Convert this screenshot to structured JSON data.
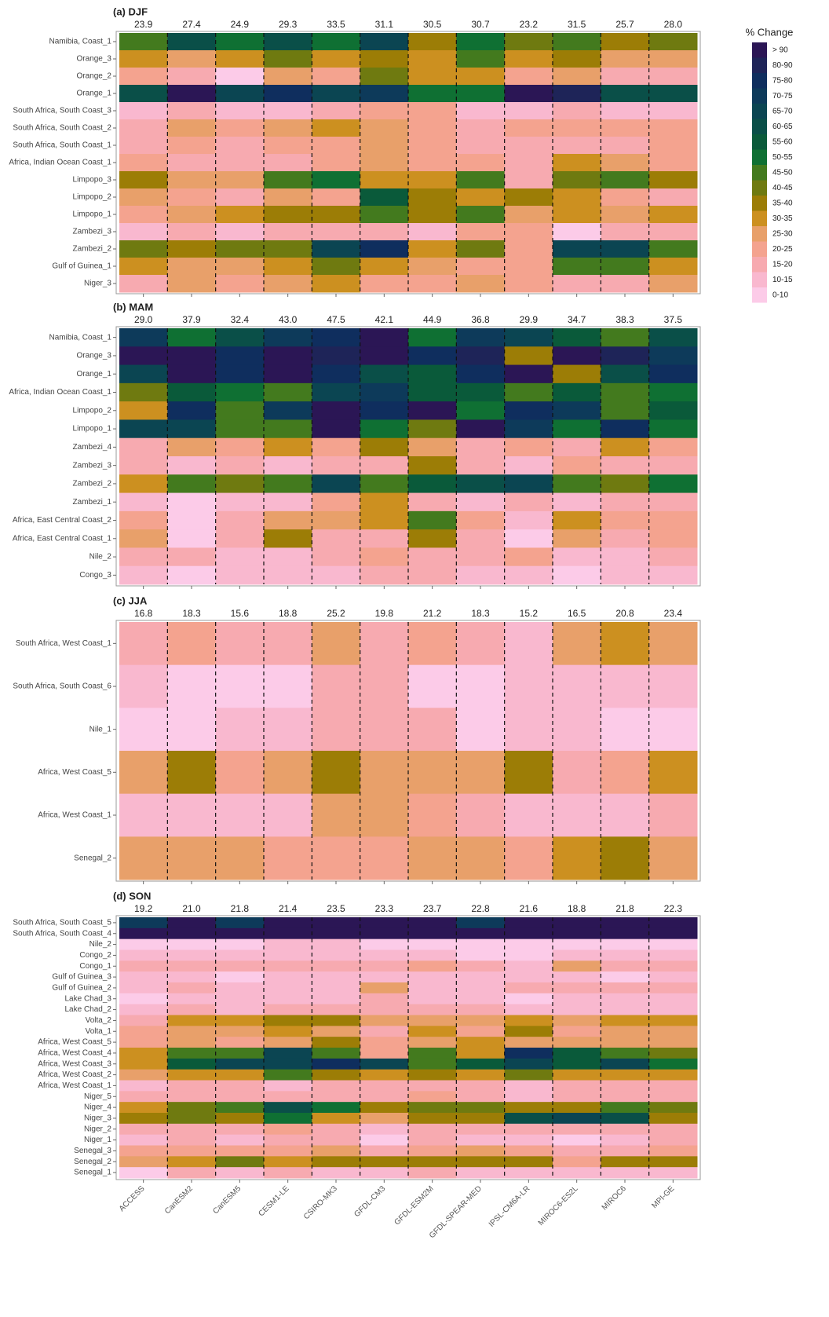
{
  "columns": [
    "ACCESS",
    "CanESM2",
    "CanESM5",
    "CESM1-LE",
    "CSIRO-MK3",
    "GFDL-CM3",
    "GFDL-ESM2M",
    "GFDL-SPEAR-MED",
    "IPSL-CM6A-LR",
    "MIROC6-ES2L",
    "MIROC6",
    "MPI-GE"
  ],
  "legend": {
    "title": "% Change",
    "classes": [
      {
        "label": "> 90",
        "color": "#2b1655"
      },
      {
        "label": "80-90",
        "color": "#1e2458"
      },
      {
        "label": "75-80",
        "color": "#0f2e5e"
      },
      {
        "label": "70-75",
        "color": "#0d3a5a"
      },
      {
        "label": "65-70",
        "color": "#0b4552"
      },
      {
        "label": "60-65",
        "color": "#0a4f48"
      },
      {
        "label": "55-60",
        "color": "#0a5a3a"
      },
      {
        "label": "50-55",
        "color": "#0f7033"
      },
      {
        "label": "45-50",
        "color": "#437a1e"
      },
      {
        "label": "40-45",
        "color": "#6f7a10"
      },
      {
        "label": "35-40",
        "color": "#9c7d06"
      },
      {
        "label": "30-35",
        "color": "#cc9020"
      },
      {
        "label": "25-30",
        "color": "#e8a06a"
      },
      {
        "label": "20-25",
        "color": "#f4a38f"
      },
      {
        "label": "15-20",
        "color": "#f7aab0"
      },
      {
        "label": "10-15",
        "color": "#f9b8cf"
      },
      {
        "label": "0-10",
        "color": "#fccbe8"
      }
    ]
  },
  "chart_data": [
    {
      "type": "heatmap",
      "title": "(a) DJF",
      "rows": [
        "Namibia, Coast_1",
        "Orange_3",
        "Orange_2",
        "Orange_1",
        "South Africa, South Coast_3",
        "South Africa, South Coast_2",
        "South Africa, South Coast_1",
        "Africa, Indian Ocean Coast_1",
        "Limpopo_3",
        "Limpopo_2",
        "Limpopo_1",
        "Zambezi_3",
        "Zambezi_2",
        "Gulf of Guinea_1",
        "Niger_3"
      ],
      "means": [
        23.9,
        27.4,
        24.9,
        29.3,
        33.5,
        31.1,
        30.5,
        30.7,
        23.2,
        31.5,
        25.7,
        28.0
      ],
      "mean_labels": [
        "23.9",
        "27.4",
        "24.9",
        "29.3",
        "33.5",
        "31.1",
        "30.5",
        "30.7",
        "23.2",
        "31.5",
        "25.7",
        "28.0"
      ],
      "cells": [
        [
          8,
          5,
          7,
          5,
          7,
          4,
          10,
          7,
          9,
          8,
          10,
          9
        ],
        [
          11,
          12,
          11,
          9,
          11,
          10,
          11,
          8,
          11,
          10,
          12,
          12
        ],
        [
          13,
          14,
          16,
          12,
          13,
          9,
          11,
          11,
          13,
          12,
          14,
          14
        ],
        [
          5,
          0,
          4,
          2,
          4,
          3,
          7,
          7,
          0,
          1,
          5,
          5
        ],
        [
          15,
          14,
          15,
          15,
          14,
          13,
          13,
          15,
          15,
          14,
          15,
          15
        ],
        [
          14,
          12,
          13,
          12,
          11,
          12,
          13,
          14,
          13,
          13,
          13,
          13
        ],
        [
          14,
          13,
          14,
          13,
          13,
          12,
          13,
          14,
          14,
          14,
          14,
          13
        ],
        [
          13,
          14,
          14,
          14,
          13,
          12,
          13,
          13,
          14,
          11,
          12,
          13
        ],
        [
          10,
          12,
          12,
          8,
          7,
          11,
          11,
          8,
          14,
          9,
          8,
          10
        ],
        [
          12,
          13,
          14,
          12,
          13,
          6,
          10,
          11,
          10,
          11,
          13,
          14
        ],
        [
          13,
          12,
          11,
          10,
          10,
          8,
          10,
          8,
          12,
          11,
          12,
          11
        ],
        [
          15,
          14,
          15,
          14,
          14,
          14,
          15,
          13,
          13,
          16,
          14,
          14
        ],
        [
          9,
          10,
          9,
          9,
          4,
          2,
          11,
          9,
          13,
          4,
          4,
          8
        ],
        [
          11,
          12,
          12,
          11,
          9,
          11,
          12,
          13,
          13,
          8,
          8,
          11
        ],
        [
          14,
          12,
          13,
          12,
          11,
          13,
          13,
          12,
          13,
          14,
          14,
          12
        ]
      ]
    },
    {
      "type": "heatmap",
      "title": "(b) MAM",
      "rows": [
        "Namibia, Coast_1",
        "Orange_3",
        "Orange_1",
        "Africa, Indian Ocean Coast_1",
        "Limpopo_2",
        "Limpopo_1",
        "Zambezi_4",
        "Zambezi_3",
        "Zambezi_2",
        "Zambezi_1",
        "Africa, East Central Coast_2",
        "Africa, East Central Coast_1",
        "Nile_2",
        "Congo_3"
      ],
      "means": [
        29.0,
        37.9,
        32.4,
        43.0,
        47.5,
        42.1,
        44.9,
        36.8,
        29.9,
        34.7,
        38.3,
        37.5
      ],
      "mean_labels": [
        "29.0",
        "37.9",
        "32.4",
        "43.0",
        "47.5",
        "42.1",
        "44.9",
        "36.8",
        "29.9",
        "34.7",
        "38.3",
        "37.5"
      ],
      "cells": [
        [
          3,
          7,
          5,
          3,
          2,
          0,
          7,
          3,
          4,
          6,
          8,
          5
        ],
        [
          0,
          0,
          2,
          0,
          1,
          0,
          2,
          1,
          10,
          0,
          1,
          3
        ],
        [
          4,
          0,
          2,
          0,
          2,
          5,
          6,
          2,
          0,
          10,
          5,
          2
        ],
        [
          9,
          6,
          7,
          8,
          4,
          3,
          6,
          6,
          8,
          6,
          8,
          7
        ],
        [
          11,
          2,
          8,
          3,
          0,
          2,
          0,
          7,
          2,
          3,
          8,
          6
        ],
        [
          4,
          4,
          8,
          8,
          0,
          7,
          9,
          0,
          3,
          7,
          2,
          7
        ],
        [
          14,
          12,
          13,
          11,
          13,
          10,
          12,
          14,
          13,
          14,
          11,
          13
        ],
        [
          14,
          15,
          14,
          15,
          14,
          14,
          10,
          14,
          15,
          13,
          14,
          14
        ],
        [
          11,
          8,
          9,
          8,
          4,
          8,
          6,
          5,
          4,
          8,
          9,
          7
        ],
        [
          15,
          16,
          15,
          15,
          13,
          11,
          14,
          15,
          14,
          15,
          14,
          14
        ],
        [
          13,
          16,
          14,
          12,
          12,
          11,
          8,
          13,
          15,
          11,
          13,
          13
        ],
        [
          12,
          16,
          14,
          10,
          14,
          14,
          10,
          14,
          16,
          12,
          14,
          13
        ],
        [
          14,
          14,
          15,
          15,
          14,
          13,
          14,
          14,
          13,
          15,
          15,
          14
        ],
        [
          15,
          16,
          15,
          15,
          15,
          14,
          14,
          15,
          15,
          16,
          15,
          15
        ]
      ]
    },
    {
      "type": "heatmap",
      "title": "(c) JJA",
      "rows": [
        "South Africa, West Coast_1",
        "South Africa, South Coast_6",
        "Nile_1",
        "Africa, West Coast_5",
        "Africa, West Coast_1",
        "Senegal_2"
      ],
      "means": [
        16.8,
        18.3,
        15.6,
        18.8,
        25.2,
        19.8,
        21.2,
        18.3,
        15.2,
        16.5,
        20.8,
        23.4
      ],
      "mean_labels": [
        "16.8",
        "18.3",
        "15.6",
        "18.8",
        "25.2",
        "19.8",
        "21.2",
        "18.3",
        "15.2",
        "16.5",
        "20.8",
        "23.4"
      ],
      "cells": [
        [
          14,
          13,
          14,
          14,
          12,
          14,
          13,
          14,
          15,
          12,
          11,
          12
        ],
        [
          15,
          16,
          16,
          16,
          14,
          14,
          16,
          16,
          15,
          15,
          15,
          15
        ],
        [
          16,
          16,
          15,
          15,
          14,
          14,
          14,
          16,
          15,
          15,
          16,
          16
        ],
        [
          12,
          10,
          13,
          12,
          10,
          12,
          12,
          12,
          10,
          14,
          13,
          11
        ],
        [
          15,
          15,
          15,
          15,
          12,
          12,
          13,
          14,
          15,
          15,
          15,
          14
        ],
        [
          12,
          12,
          12,
          13,
          13,
          13,
          12,
          12,
          13,
          11,
          10,
          12
        ]
      ]
    },
    {
      "type": "heatmap",
      "title": "(d) SON",
      "rows": [
        "South Africa, South Coast_5",
        "South Africa, South Coast_4",
        "Nile_2",
        "Congo_2",
        "Congo_1",
        "Gulf of Guinea_3",
        "Gulf of Guinea_2",
        "Lake Chad_3",
        "Lake Chad_2",
        "Volta_2",
        "Volta_1",
        "Africa, West Coast_5",
        "Africa, West Coast_4",
        "Africa, West Coast_3",
        "Africa, West Coast_2",
        "Africa, West Coast_1",
        "Niger_5",
        "Niger_4",
        "Niger_3",
        "Niger_2",
        "Niger_1",
        "Senegal_3",
        "Senegal_2",
        "Senegal_1"
      ],
      "means": [
        19.2,
        21.0,
        21.8,
        21.4,
        23.5,
        23.3,
        23.7,
        22.8,
        21.6,
        18.8,
        21.8,
        22.3
      ],
      "mean_labels": [
        "19.2",
        "21.0",
        "21.8",
        "21.4",
        "23.5",
        "23.3",
        "23.7",
        "22.8",
        "21.6",
        "18.8",
        "21.8",
        "22.3"
      ],
      "cells": [
        [
          3,
          0,
          3,
          0,
          0,
          0,
          0,
          3,
          0,
          0,
          0,
          0
        ],
        [
          0,
          0,
          0,
          0,
          0,
          0,
          0,
          0,
          0,
          0,
          0,
          0
        ],
        [
          16,
          16,
          16,
          15,
          15,
          16,
          16,
          16,
          16,
          16,
          16,
          16
        ],
        [
          15,
          15,
          15,
          15,
          15,
          15,
          15,
          16,
          16,
          15,
          15,
          15
        ],
        [
          14,
          14,
          14,
          14,
          14,
          14,
          13,
          14,
          15,
          12,
          14,
          14
        ],
        [
          15,
          15,
          16,
          15,
          15,
          15,
          15,
          15,
          15,
          15,
          16,
          15
        ],
        [
          15,
          14,
          15,
          15,
          15,
          12,
          15,
          15,
          14,
          14,
          14,
          14
        ],
        [
          16,
          15,
          15,
          15,
          15,
          14,
          15,
          15,
          16,
          15,
          15,
          15
        ],
        [
          15,
          14,
          15,
          14,
          14,
          14,
          14,
          14,
          15,
          15,
          15,
          15
        ],
        [
          14,
          11,
          11,
          10,
          10,
          12,
          12,
          12,
          11,
          12,
          11,
          11
        ],
        [
          13,
          12,
          12,
          11,
          12,
          14,
          11,
          13,
          10,
          13,
          12,
          12
        ],
        [
          13,
          12,
          13,
          12,
          10,
          13,
          12,
          11,
          12,
          12,
          12,
          12
        ],
        [
          11,
          8,
          8,
          4,
          8,
          13,
          8,
          11,
          2,
          6,
          8,
          9
        ],
        [
          11,
          6,
          4,
          4,
          2,
          4,
          8,
          6,
          4,
          6,
          4,
          7
        ],
        [
          12,
          11,
          11,
          8,
          10,
          11,
          10,
          11,
          9,
          11,
          11,
          11
        ],
        [
          15,
          14,
          14,
          15,
          14,
          14,
          14,
          14,
          15,
          14,
          14,
          14
        ],
        [
          14,
          14,
          14,
          14,
          14,
          14,
          13,
          14,
          15,
          14,
          14,
          14
        ],
        [
          11,
          9,
          8,
          5,
          7,
          10,
          9,
          9,
          10,
          10,
          8,
          9
        ],
        [
          10,
          9,
          10,
          7,
          11,
          12,
          10,
          10,
          5,
          4,
          5,
          10
        ],
        [
          14,
          14,
          14,
          13,
          14,
          15,
          14,
          14,
          14,
          14,
          14,
          14
        ],
        [
          15,
          14,
          15,
          14,
          14,
          16,
          14,
          15,
          15,
          16,
          15,
          14
        ],
        [
          13,
          13,
          13,
          13,
          12,
          14,
          13,
          12,
          13,
          14,
          14,
          13
        ],
        [
          12,
          11,
          9,
          11,
          10,
          10,
          10,
          10,
          10,
          13,
          10,
          10
        ],
        [
          16,
          14,
          15,
          14,
          15,
          15,
          14,
          15,
          15,
          15,
          15,
          15
        ]
      ]
    }
  ]
}
